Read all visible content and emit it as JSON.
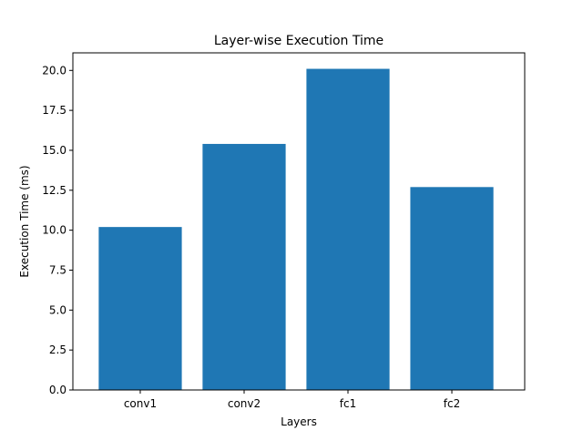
{
  "chart_data": {
    "type": "bar",
    "title": "Layer-wise Execution Time",
    "xlabel": "Layers",
    "ylabel": "Execution Time (ms)",
    "categories": [
      "conv1",
      "conv2",
      "fc1",
      "fc2"
    ],
    "values": [
      10.2,
      15.4,
      20.1,
      12.7
    ],
    "ylim": [
      0,
      21.1
    ],
    "yticks": [
      0.0,
      2.5,
      5.0,
      7.5,
      10.0,
      12.5,
      15.0,
      17.5,
      20.0
    ],
    "ytick_labels": [
      "0.0",
      "2.5",
      "5.0",
      "7.5",
      "10.0",
      "12.5",
      "15.0",
      "17.5",
      "20.0"
    ],
    "bar_color": "#1f77b4",
    "grid": false,
    "legend": "none"
  }
}
